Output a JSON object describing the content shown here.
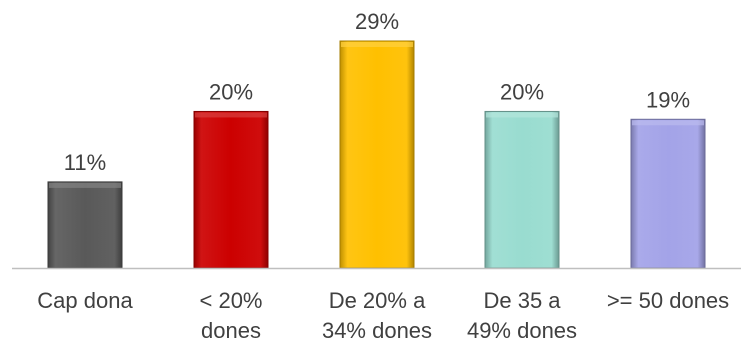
{
  "chart_data": {
    "type": "bar",
    "title": "",
    "xlabel": "",
    "ylabel": "",
    "ylim": [
      0,
      29
    ],
    "grid": false,
    "legend": "none",
    "categories": [
      [
        "Cap dona"
      ],
      [
        "< 20%",
        "dones"
      ],
      [
        "De 20% a",
        "34% dones"
      ],
      [
        "De 35 a",
        "49% dones"
      ],
      [
        ">= 50 dones"
      ]
    ],
    "values": [
      11,
      20,
      29,
      20,
      19
    ],
    "data_labels": [
      "11%",
      "20%",
      "29%",
      "20%",
      "19%"
    ],
    "colors": [
      "#595959",
      "#cc0000",
      "#ffc000",
      "#99dcd0",
      "#a3a3e8"
    ],
    "axis_color": "#bfbfbf"
  }
}
